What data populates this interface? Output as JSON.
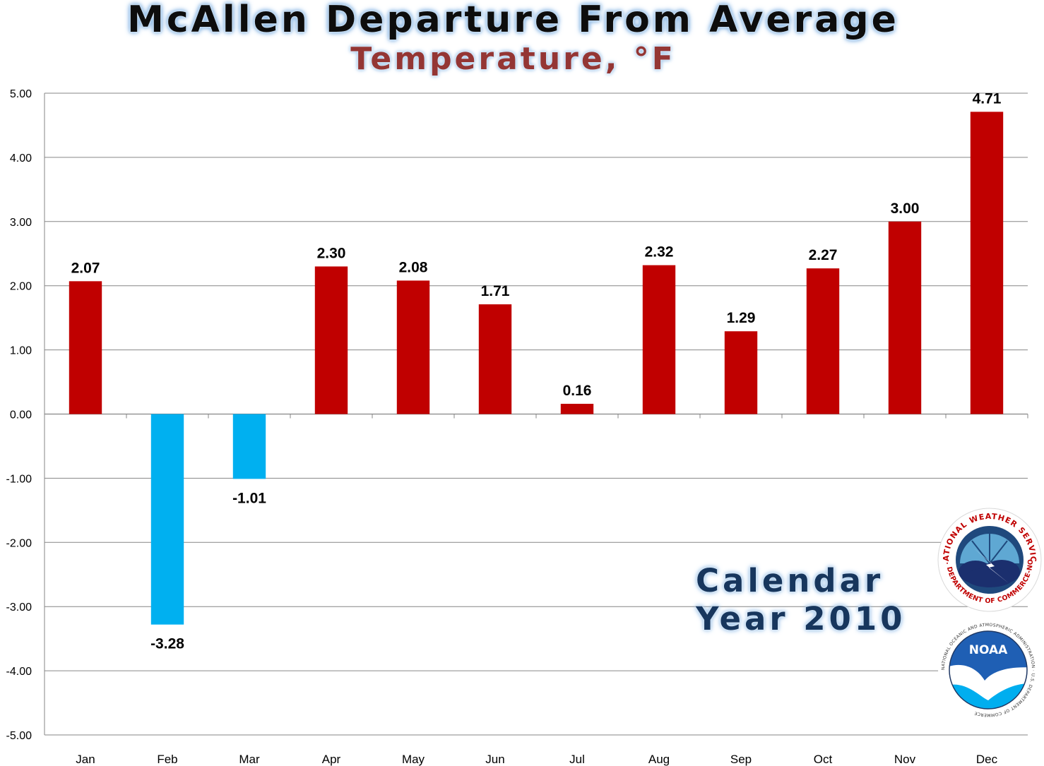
{
  "chart_data": {
    "type": "bar",
    "title": "McAllen Departure From Average",
    "subtitle": "Temperature, °F",
    "categories": [
      "Jan",
      "Feb",
      "Mar",
      "Apr",
      "May",
      "Jun",
      "Jul",
      "Aug",
      "Sep",
      "Oct",
      "Nov",
      "Dec"
    ],
    "values": [
      2.07,
      -3.28,
      -1.01,
      2.3,
      2.08,
      1.71,
      0.16,
      2.32,
      1.29,
      2.27,
      3.0,
      4.71
    ],
    "data_labels": [
      "2.07",
      "-3.28",
      "-1.01",
      "2.30",
      "2.08",
      "1.71",
      "0.16",
      "2.32",
      "1.29",
      "2.27",
      "3.00",
      "4.71"
    ],
    "y_ticks": [
      "5.00",
      "4.00",
      "3.00",
      "2.00",
      "1.00",
      "0.00",
      "-1.00",
      "-2.00",
      "-3.00",
      "-4.00",
      "-5.00"
    ],
    "ylim": [
      -5,
      5
    ],
    "xlabel": "",
    "ylabel": "",
    "grid": true,
    "legend": "none",
    "colors": {
      "positive": "#c00000",
      "negative": "#00b0f0",
      "grid": "#868686",
      "axis": "#868686"
    }
  },
  "annotation": {
    "line1": "Calendar",
    "line2": "Year 2010"
  },
  "logos": {
    "nws": {
      "icon": "nws-logo",
      "text_top": "NATIONAL WEATHER SERVICE",
      "text_bottom": "U.S. DEPARTMENT OF COMMERCE-NOAA"
    },
    "noaa": {
      "icon": "noaa-logo",
      "text": "NOAA",
      "ring_text": "NATIONAL OCEANIC AND ATMOSPHERIC ADMINISTRATION · U.S. DEPARTMENT OF COMMERCE"
    }
  }
}
